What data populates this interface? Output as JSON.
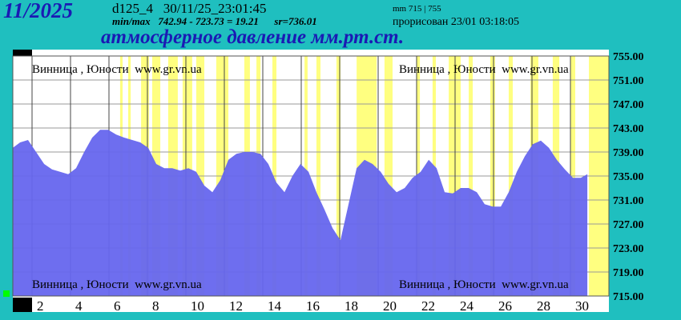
{
  "header": {
    "period": "11/2025",
    "station": "d125_4   30/11/25_23:01:45",
    "stats": "min/max   742.94 - 723.73 = 19.21      sr=736.01",
    "range": "mm 715 | 755",
    "rendered": "прорисован 23/01 03:18:05"
  },
  "chart_data": {
    "type": "area",
    "title": "атмосферное давление мм.рт.ст.",
    "watermark": "Винница , Юности  www.gr.vn.ua",
    "color": "#6666ee",
    "highlight_color": "#ffff80",
    "grid": true,
    "x": [
      1,
      1.38,
      1.79,
      2.21,
      2.63,
      3.04,
      3.46,
      3.88,
      4.29,
      4.71,
      5.13,
      5.54,
      5.96,
      6.38,
      6.79,
      7.21,
      7.63,
      8.04,
      8.46,
      8.88,
      9.29,
      9.71,
      10.13,
      10.54,
      10.96,
      11.38,
      11.79,
      12.21,
      12.63,
      13.04,
      13.46,
      13.88,
      14.29,
      14.71,
      15.13,
      15.54,
      15.96,
      16.38,
      16.79,
      17.21,
      17.63,
      18.04,
      18.46,
      18.88,
      19.29,
      19.71,
      20.13,
      20.54,
      20.96,
      21.38,
      21.79,
      22.21,
      22.63,
      23.04,
      23.46,
      23.88,
      24.29,
      24.71,
      25.13,
      25.54,
      25.96,
      26.38,
      26.79,
      27.21,
      27.63,
      28.04,
      28.46,
      28.88,
      29.29,
      29.71,
      30.13,
      30.54,
      30.88
    ],
    "values": [
      739.7,
      740.6,
      741.0,
      739.0,
      737.0,
      736.1,
      735.7,
      735.3,
      736.3,
      739.0,
      741.4,
      742.7,
      742.7,
      741.9,
      741.4,
      741.0,
      740.6,
      739.7,
      737.0,
      736.3,
      736.3,
      735.9,
      736.3,
      735.7,
      733.4,
      732.3,
      734.3,
      737.7,
      738.7,
      739.0,
      739.0,
      738.7,
      737.0,
      733.9,
      732.3,
      735.0,
      737.0,
      735.7,
      732.3,
      729.4,
      726.3,
      724.3,
      730.3,
      736.3,
      737.7,
      737.0,
      735.7,
      733.7,
      732.3,
      733.0,
      734.7,
      735.7,
      737.7,
      736.3,
      732.3,
      732.1,
      733.0,
      733.0,
      732.3,
      730.3,
      729.9,
      729.9,
      732.3,
      735.7,
      738.3,
      740.3,
      740.9,
      739.7,
      737.7,
      736.1,
      734.7,
      734.7,
      735.3
    ],
    "highlight_periods": [
      [
        6.58,
        6.71
      ],
      [
        7.0,
        7.13
      ],
      [
        7.67,
        8.08
      ],
      [
        8.25,
        8.67
      ],
      [
        9.08,
        9.58
      ],
      [
        9.83,
        10.33
      ],
      [
        10.54,
        10.96
      ],
      [
        11.58,
        12.21
      ],
      [
        13.04,
        13.33
      ],
      [
        13.67,
        13.88
      ],
      [
        14.5,
        14.71
      ],
      [
        16.17,
        16.33
      ],
      [
        16.79,
        17.0
      ],
      [
        17.83,
        18.04
      ],
      [
        18.88,
        19.92
      ],
      [
        20.33,
        20.75
      ],
      [
        22.0,
        22.17
      ],
      [
        22.83,
        23.0
      ],
      [
        23.67,
        24.29
      ],
      [
        24.71,
        24.92
      ],
      [
        25.83,
        26.08
      ],
      [
        26.79,
        27.0
      ],
      [
        27.92,
        28.33
      ],
      [
        29.08,
        29.42
      ],
      [
        30.0,
        30.25
      ],
      [
        30.96,
        32.0
      ]
    ],
    "xlim": [
      1,
      32
    ],
    "xticks": [
      2,
      4,
      6,
      8,
      10,
      12,
      14,
      16,
      18,
      20,
      22,
      24,
      26,
      28,
      30
    ],
    "ylim": [
      715,
      755
    ],
    "yticks": [
      {
        "value": 715,
        "label": "715.00"
      },
      {
        "value": 719,
        "label": "719.00"
      },
      {
        "value": 723,
        "label": "723.00"
      },
      {
        "value": 727,
        "label": "727.00"
      },
      {
        "value": 731,
        "label": "731.00"
      },
      {
        "value": 735,
        "label": "735.00"
      },
      {
        "value": 739,
        "label": "739.00"
      },
      {
        "value": 743,
        "label": "743.00"
      },
      {
        "value": 747,
        "label": "747.00"
      },
      {
        "value": 751,
        "label": "751.00"
      },
      {
        "value": 755,
        "label": "755.00"
      }
    ]
  }
}
